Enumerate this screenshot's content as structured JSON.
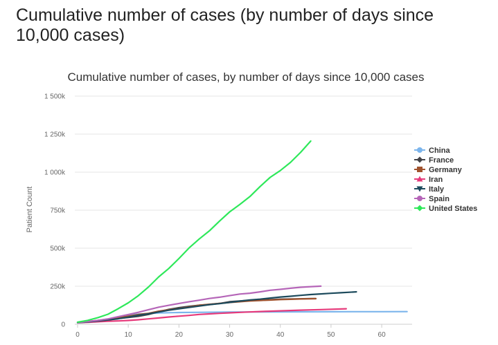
{
  "page": {
    "heading": "Cumulative number of cases (by number of days since 10,000 cases)"
  },
  "chart_data": {
    "type": "line",
    "title": "Cumulative number of cases, by number of days since 10,000 cases",
    "xlabel": "",
    "ylabel": "Patient Count",
    "xlim": [
      0,
      66
    ],
    "ylim": [
      0,
      1500000
    ],
    "x_ticks": [
      0,
      10,
      20,
      30,
      40,
      50,
      60
    ],
    "x_tick_labels": [
      "0",
      "10",
      "20",
      "30",
      "40",
      "50",
      "60"
    ],
    "y_ticks": [
      0,
      250000,
      500000,
      750000,
      1000000,
      1250000,
      1500000
    ],
    "y_tick_labels": [
      "0",
      "250k",
      "500k",
      "750k",
      "1 000k",
      "1 250k",
      "1 500k"
    ],
    "grid": true,
    "legend_position": "right",
    "series": [
      {
        "name": "China",
        "color": "#7cb5ec",
        "marker": "circle",
        "points": [
          [
            0,
            11791
          ],
          [
            2,
            17205
          ],
          [
            4,
            24324
          ],
          [
            6,
            34546
          ],
          [
            8,
            42638
          ],
          [
            10,
            59804
          ],
          [
            12,
            66492
          ],
          [
            14,
            70548
          ],
          [
            16,
            74185
          ],
          [
            18,
            75700
          ],
          [
            20,
            77150
          ],
          [
            25,
            78630
          ],
          [
            30,
            80151
          ],
          [
            35,
            80977
          ],
          [
            40,
            81439
          ],
          [
            45,
            81865
          ],
          [
            50,
            82209
          ],
          [
            55,
            82631
          ],
          [
            60,
            82862
          ],
          [
            65,
            83000
          ]
        ]
      },
      {
        "name": "France",
        "color": "#434348",
        "marker": "diamond",
        "points": [
          [
            0,
            12612
          ],
          [
            2,
            16018
          ],
          [
            4,
            22300
          ],
          [
            6,
            29155
          ],
          [
            8,
            38105
          ],
          [
            10,
            44550
          ],
          [
            12,
            52128
          ],
          [
            14,
            64338
          ],
          [
            16,
            82048
          ],
          [
            18,
            98010
          ],
          [
            20,
            109069
          ],
          [
            22,
            117749
          ],
          [
            24,
            124869
          ],
          [
            26,
            129654
          ],
          [
            28,
            136779
          ],
          [
            30,
            147969
          ],
          [
            32,
            152894
          ],
          [
            34,
            157125
          ],
          [
            36,
            159952
          ],
          [
            38,
            161488
          ],
          [
            40,
            165093
          ],
          [
            42,
            165911
          ],
          [
            44,
            167299
          ],
          [
            46,
            168925
          ],
          [
            47,
            169053
          ]
        ]
      },
      {
        "name": "Germany",
        "color": "#a0522d",
        "marker": "square",
        "points": [
          [
            0,
            12327
          ],
          [
            2,
            18323
          ],
          [
            4,
            24873
          ],
          [
            6,
            32986
          ],
          [
            8,
            43211
          ],
          [
            10,
            53340
          ],
          [
            12,
            63929
          ],
          [
            14,
            71808
          ],
          [
            16,
            85778
          ],
          [
            18,
            95391
          ],
          [
            20,
            103375
          ],
          [
            22,
            113296
          ],
          [
            24,
            125098
          ],
          [
            26,
            131359
          ],
          [
            28,
            137439
          ],
          [
            30,
            143342
          ],
          [
            32,
            148291
          ],
          [
            34,
            153129
          ],
          [
            36,
            156513
          ],
          [
            38,
            159119
          ],
          [
            40,
            162496
          ],
          [
            42,
            164077
          ],
          [
            44,
            166152
          ],
          [
            46,
            167575
          ],
          [
            47,
            168162
          ]
        ]
      },
      {
        "name": "Iran",
        "color": "#e6397a",
        "marker": "triangle",
        "points": [
          [
            0,
            10075
          ],
          [
            2,
            12729
          ],
          [
            4,
            16169
          ],
          [
            6,
            19644
          ],
          [
            8,
            21638
          ],
          [
            10,
            24811
          ],
          [
            12,
            29406
          ],
          [
            14,
            35408
          ],
          [
            16,
            41495
          ],
          [
            18,
            47593
          ],
          [
            20,
            53183
          ],
          [
            22,
            58226
          ],
          [
            24,
            64586
          ],
          [
            26,
            68192
          ],
          [
            28,
            71686
          ],
          [
            30,
            74877
          ],
          [
            32,
            77995
          ],
          [
            34,
            80868
          ],
          [
            36,
            83505
          ],
          [
            38,
            85996
          ],
          [
            40,
            88194
          ],
          [
            42,
            90481
          ],
          [
            44,
            92584
          ],
          [
            46,
            94640
          ],
          [
            48,
            96448
          ],
          [
            50,
            98647
          ],
          [
            53,
            101650
          ]
        ]
      },
      {
        "name": "Italy",
        "color": "#1c4a5c",
        "marker": "triangle-down",
        "points": [
          [
            0,
            10149
          ],
          [
            2,
            15113
          ],
          [
            4,
            21157
          ],
          [
            6,
            27980
          ],
          [
            8,
            35713
          ],
          [
            10,
            47021
          ],
          [
            12,
            59138
          ],
          [
            14,
            69176
          ],
          [
            16,
            80589
          ],
          [
            18,
            92472
          ],
          [
            20,
            101739
          ],
          [
            22,
            110574
          ],
          [
            24,
            119827
          ],
          [
            26,
            128948
          ],
          [
            28,
            135586
          ],
          [
            30,
            143626
          ],
          [
            32,
            152271
          ],
          [
            34,
            159516
          ],
          [
            36,
            165155
          ],
          [
            38,
            172434
          ],
          [
            40,
            178972
          ],
          [
            42,
            183957
          ],
          [
            44,
            189973
          ],
          [
            46,
            195351
          ],
          [
            48,
            199414
          ],
          [
            50,
            203591
          ],
          [
            52,
            207428
          ],
          [
            55,
            213013
          ]
        ]
      },
      {
        "name": "Spain",
        "color": "#b565b8",
        "marker": "circle",
        "points": [
          [
            0,
            11178
          ],
          [
            2,
            17963
          ],
          [
            4,
            25374
          ],
          [
            6,
            35136
          ],
          [
            8,
            49515
          ],
          [
            10,
            64059
          ],
          [
            12,
            78797
          ],
          [
            14,
            95923
          ],
          [
            16,
            112065
          ],
          [
            18,
            124736
          ],
          [
            20,
            136675
          ],
          [
            22,
            148220
          ],
          [
            24,
            158273
          ],
          [
            26,
            169496
          ],
          [
            28,
            177644
          ],
          [
            30,
            188068
          ],
          [
            32,
            198674
          ],
          [
            34,
            204178
          ],
          [
            36,
            213024
          ],
          [
            38,
            223759
          ],
          [
            40,
            229422
          ],
          [
            42,
            236899
          ],
          [
            44,
            242988
          ],
          [
            46,
            247122
          ],
          [
            48,
            250561
          ]
        ]
      },
      {
        "name": "United States",
        "color": "#2ee85a",
        "marker": "diamond",
        "points": [
          [
            0,
            13680
          ],
          [
            2,
            25489
          ],
          [
            4,
            43734
          ],
          [
            6,
            65778
          ],
          [
            8,
            101657
          ],
          [
            10,
            140886
          ],
          [
            12,
            188172
          ],
          [
            14,
            245540
          ],
          [
            16,
            311357
          ],
          [
            18,
            366667
          ],
          [
            20,
            432132
          ],
          [
            22,
            501615
          ],
          [
            24,
            560433
          ],
          [
            26,
            614246
          ],
          [
            28,
            678144
          ],
          [
            30,
            738830
          ],
          [
            32,
            787752
          ],
          [
            34,
            839675
          ],
          [
            36,
            905358
          ],
          [
            38,
            965785
          ],
          [
            40,
            1010356
          ],
          [
            42,
            1064194
          ],
          [
            44,
            1130000
          ],
          [
            46,
            1204351
          ]
        ]
      }
    ]
  }
}
